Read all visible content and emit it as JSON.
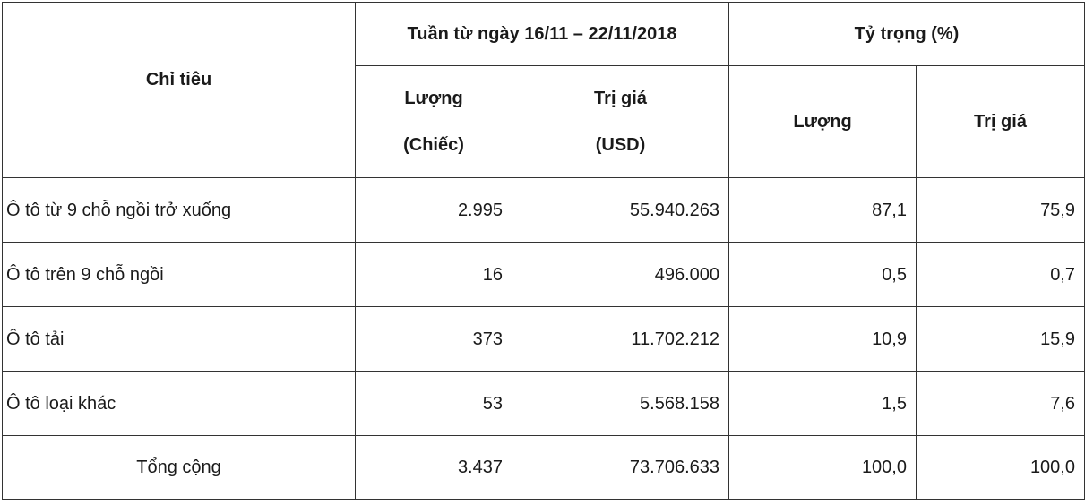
{
  "table": {
    "header": {
      "indicator": "Chỉ tiêu",
      "week_group": "Tuần từ ngày 16/11 – 22/11/2018",
      "share_group": "Tỷ trọng (%)",
      "week_qty_line1": "Lượng",
      "week_qty_line2": "(Chiếc)",
      "week_val_line1": "Trị giá",
      "week_val_line2": "(USD)",
      "share_qty": "Lượng",
      "share_val": "Trị giá"
    },
    "rows": [
      {
        "label": "Ô tô từ 9 chỗ ngồi trở xuống",
        "qty": "2.995",
        "value": "55.940.263",
        "share_qty": "87,1",
        "share_value": "75,9"
      },
      {
        "label": "Ô tô trên 9 chỗ ngồi",
        "qty": "16",
        "value": "496.000",
        "share_qty": "0,5",
        "share_value": "0,7"
      },
      {
        "label": "Ô tô tải",
        "qty": "373",
        "value": "11.702.212",
        "share_qty": "10,9",
        "share_value": "15,9"
      },
      {
        "label": "Ô tô loại khác",
        "qty": "53",
        "value": "5.568.158",
        "share_qty": "1,5",
        "share_value": "7,6"
      }
    ],
    "total": {
      "label": "Tổng cộng",
      "qty": "3.437",
      "value": "73.706.633",
      "share_qty": "100,0",
      "share_value": "100,0"
    }
  }
}
